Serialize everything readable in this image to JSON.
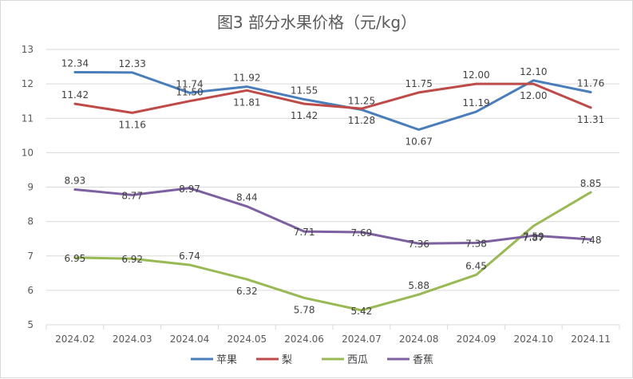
{
  "chart_data": {
    "type": "line",
    "title": "图3  部分水果价格（元/kg）",
    "categories": [
      "2024.02",
      "2024.03",
      "2024.04",
      "2024.05",
      "2024.06",
      "2024.07",
      "2024.08",
      "2024.09",
      "2024.10",
      "2024.11"
    ],
    "ylim": [
      5,
      13
    ],
    "yticks": [
      "5",
      "6",
      "7",
      "8",
      "9",
      "10",
      "11",
      "12",
      "13"
    ],
    "grid": true,
    "legend_position": "bottom",
    "series": [
      {
        "name": "苹果",
        "color": "#4a7ebb",
        "values": [
          12.34,
          12.33,
          11.74,
          11.92,
          11.55,
          11.25,
          10.67,
          11.19,
          12.1,
          11.76
        ],
        "labels": [
          "12.34",
          "12.33",
          "11.74",
          "11.92",
          "11.55",
          "11.25",
          "10.67",
          "11.19",
          "12.10",
          "11.76"
        ]
      },
      {
        "name": "梨",
        "color": "#be4b48",
        "values": [
          11.42,
          11.16,
          11.5,
          11.81,
          11.42,
          11.28,
          11.75,
          12.0,
          12.0,
          11.31
        ],
        "labels": [
          "11.42",
          "11.16",
          "11.50",
          "11.81",
          "11.42",
          "11.28",
          "11.75",
          "12.00",
          "12.00",
          "11.31"
        ]
      },
      {
        "name": "西瓜",
        "color": "#98b954",
        "values": [
          6.95,
          6.92,
          6.74,
          6.32,
          5.78,
          5.42,
          5.88,
          6.45,
          7.87,
          8.85
        ],
        "labels": [
          "6.95",
          "6.92",
          "6.74",
          "6.32",
          "5.78",
          "5.42",
          "5.88",
          "6.45",
          "7.87",
          "8.85"
        ]
      },
      {
        "name": "香蕉",
        "color": "#7d60a0",
        "values": [
          8.93,
          8.77,
          8.97,
          8.44,
          7.71,
          7.69,
          7.36,
          7.38,
          7.59,
          7.48
        ],
        "labels": [
          "8.93",
          "8.77",
          "8.97",
          "8.44",
          "7.71",
          "7.69",
          "7.36",
          "7.38",
          "7.59",
          "7.48"
        ]
      }
    ]
  }
}
